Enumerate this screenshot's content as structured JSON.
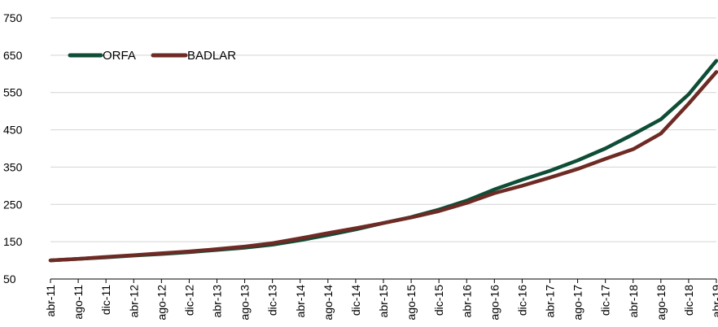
{
  "chart_data": {
    "type": "line",
    "title": "",
    "xlabel": "",
    "ylabel": "",
    "ylim": [
      50,
      750
    ],
    "y_ticks": [
      50,
      150,
      250,
      350,
      450,
      550,
      650,
      750
    ],
    "y_tick_labels": [
      "50",
      "150",
      "250",
      "350",
      "450",
      "550",
      "650",
      "750"
    ],
    "categories": [
      "abr-11",
      "ago-11",
      "dic-11",
      "abr-12",
      "ago-12",
      "dic-12",
      "abr-13",
      "ago-13",
      "dic-13",
      "abr-14",
      "ago-14",
      "dic-14",
      "abr-15",
      "ago-15",
      "dic-15",
      "abr-16",
      "ago-16",
      "dic-16",
      "abr-17",
      "ago-17",
      "dic-17",
      "abr-18",
      "ago-18",
      "dic-18",
      "abr-19"
    ],
    "grid": "horizontal",
    "legend_position": "top-left",
    "series": [
      {
        "name": "ORFA",
        "color": "#0e4d36",
        "values": [
          100,
          104,
          108,
          113,
          117,
          122,
          128,
          134,
          142,
          154,
          168,
          183,
          200,
          216,
          236,
          260,
          290,
          316,
          340,
          368,
          400,
          438,
          478,
          545,
          635
        ]
      },
      {
        "name": "BADLAR",
        "color": "#6e2a24",
        "values": [
          100,
          104,
          109,
          114,
          119,
          124,
          130,
          137,
          146,
          159,
          173,
          186,
          200,
          215,
          232,
          254,
          280,
          300,
          322,
          345,
          372,
          398,
          440,
          520,
          605
        ]
      }
    ]
  }
}
